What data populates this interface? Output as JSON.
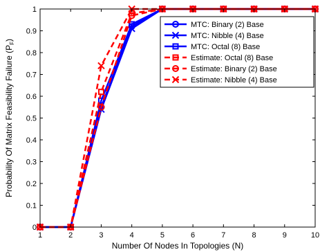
{
  "chart_data": {
    "type": "line",
    "xlabel": "Number Of Nodes In Topologies (N)",
    "ylabel": "Probability Of Matrix Feasibility Failure (P",
    "ylabel_sub": "F",
    "ylabel_tail": ")",
    "xlim": [
      1,
      10
    ],
    "ylim": [
      0,
      1
    ],
    "x_ticks": [
      "1",
      "2",
      "3",
      "4",
      "5",
      "6",
      "7",
      "8",
      "9",
      "10"
    ],
    "y_ticks": [
      "0",
      "0.1",
      "0.2",
      "0.3",
      "0.4",
      "0.5",
      "0.6",
      "0.7",
      "0.8",
      "0.9",
      "1"
    ],
    "grid": false,
    "legend_position": "top-right",
    "x": [
      1,
      2,
      3,
      4,
      5,
      6,
      7,
      8,
      9,
      10
    ],
    "series": [
      {
        "name": "MTC: Binary (2) Base",
        "values": [
          0,
          0,
          0.55,
          0.92,
          1,
          1,
          1,
          1,
          1,
          1
        ],
        "color": "#0000ff",
        "dash": "solid",
        "marker": "circle"
      },
      {
        "name": "MTC: Nibble (4) Base",
        "values": [
          0,
          0,
          0.54,
          0.91,
          1,
          1,
          1,
          1,
          1,
          1
        ],
        "color": "#0000ff",
        "dash": "solid",
        "marker": "x"
      },
      {
        "name": "MTC: Octal (8) Base",
        "values": [
          0,
          0,
          0.58,
          0.93,
          1,
          1,
          1,
          1,
          1,
          1
        ],
        "color": "#0000ff",
        "dash": "solid",
        "marker": "square"
      },
      {
        "name": "Estimate: Octal (8) Base",
        "values": [
          0,
          0,
          0.62,
          0.98,
          1,
          1,
          1,
          1,
          1,
          1
        ],
        "color": "#ff0000",
        "dash": "dashed",
        "marker": "square"
      },
      {
        "name": "Estimate: Binary (2) Base",
        "values": [
          0,
          0,
          0.55,
          0.97,
          1,
          1,
          1,
          1,
          1,
          1
        ],
        "color": "#ff0000",
        "dash": "dashed",
        "marker": "circle"
      },
      {
        "name": "Estimate: Nibble (4) Base",
        "values": [
          0,
          0,
          0.74,
          1.0,
          1,
          1,
          1,
          1,
          1,
          1
        ],
        "color": "#ff0000",
        "dash": "dashed",
        "marker": "x"
      }
    ]
  }
}
